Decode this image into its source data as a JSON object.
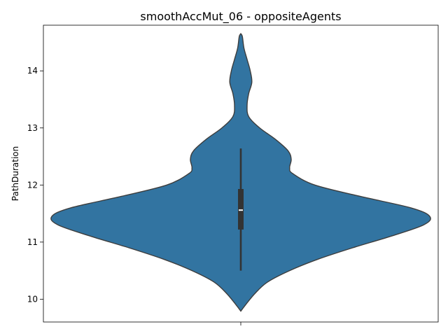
{
  "chart_data": {
    "type": "violin",
    "title": "smoothAccMut_06 - oppositeAgents",
    "xlabel": "",
    "ylabel": "PathDuration",
    "ylim": [
      9.6,
      14.8
    ],
    "yticks": [
      10,
      11,
      12,
      13,
      14
    ],
    "ytick_labels": [
      "10",
      "11",
      "12",
      "13",
      "14"
    ],
    "grid": false,
    "color": "#3274a1",
    "edge_color": "#3d3d3d",
    "box_color": "#333333",
    "median_color": "#ffffff",
    "density": [
      {
        "y": 9.79,
        "width": 0.0
      },
      {
        "y": 9.9,
        "width": 0.03
      },
      {
        "y": 10.1,
        "width": 0.09
      },
      {
        "y": 10.3,
        "width": 0.17
      },
      {
        "y": 10.5,
        "width": 0.31
      },
      {
        "y": 10.7,
        "width": 0.49
      },
      {
        "y": 10.9,
        "width": 0.71
      },
      {
        "y": 11.1,
        "width": 0.95
      },
      {
        "y": 11.3,
        "width": 1.16
      },
      {
        "y": 11.45,
        "width": 1.2
      },
      {
        "y": 11.6,
        "width": 1.08
      },
      {
        "y": 11.8,
        "width": 0.76
      },
      {
        "y": 12.0,
        "width": 0.47
      },
      {
        "y": 12.2,
        "width": 0.33
      },
      {
        "y": 12.3,
        "width": 0.31
      },
      {
        "y": 12.45,
        "width": 0.32
      },
      {
        "y": 12.6,
        "width": 0.3
      },
      {
        "y": 12.8,
        "width": 0.22
      },
      {
        "y": 13.0,
        "width": 0.12
      },
      {
        "y": 13.2,
        "width": 0.05
      },
      {
        "y": 13.4,
        "width": 0.04
      },
      {
        "y": 13.6,
        "width": 0.05
      },
      {
        "y": 13.8,
        "width": 0.07
      },
      {
        "y": 14.0,
        "width": 0.06
      },
      {
        "y": 14.2,
        "width": 0.04
      },
      {
        "y": 14.4,
        "width": 0.02
      },
      {
        "y": 14.6,
        "width": 0.01
      },
      {
        "y": 14.65,
        "width": 0.0
      }
    ],
    "box": {
      "whisker_low": 10.5,
      "q1": 11.22,
      "median": 11.56,
      "q3": 11.93,
      "whisker_high": 12.64
    }
  }
}
